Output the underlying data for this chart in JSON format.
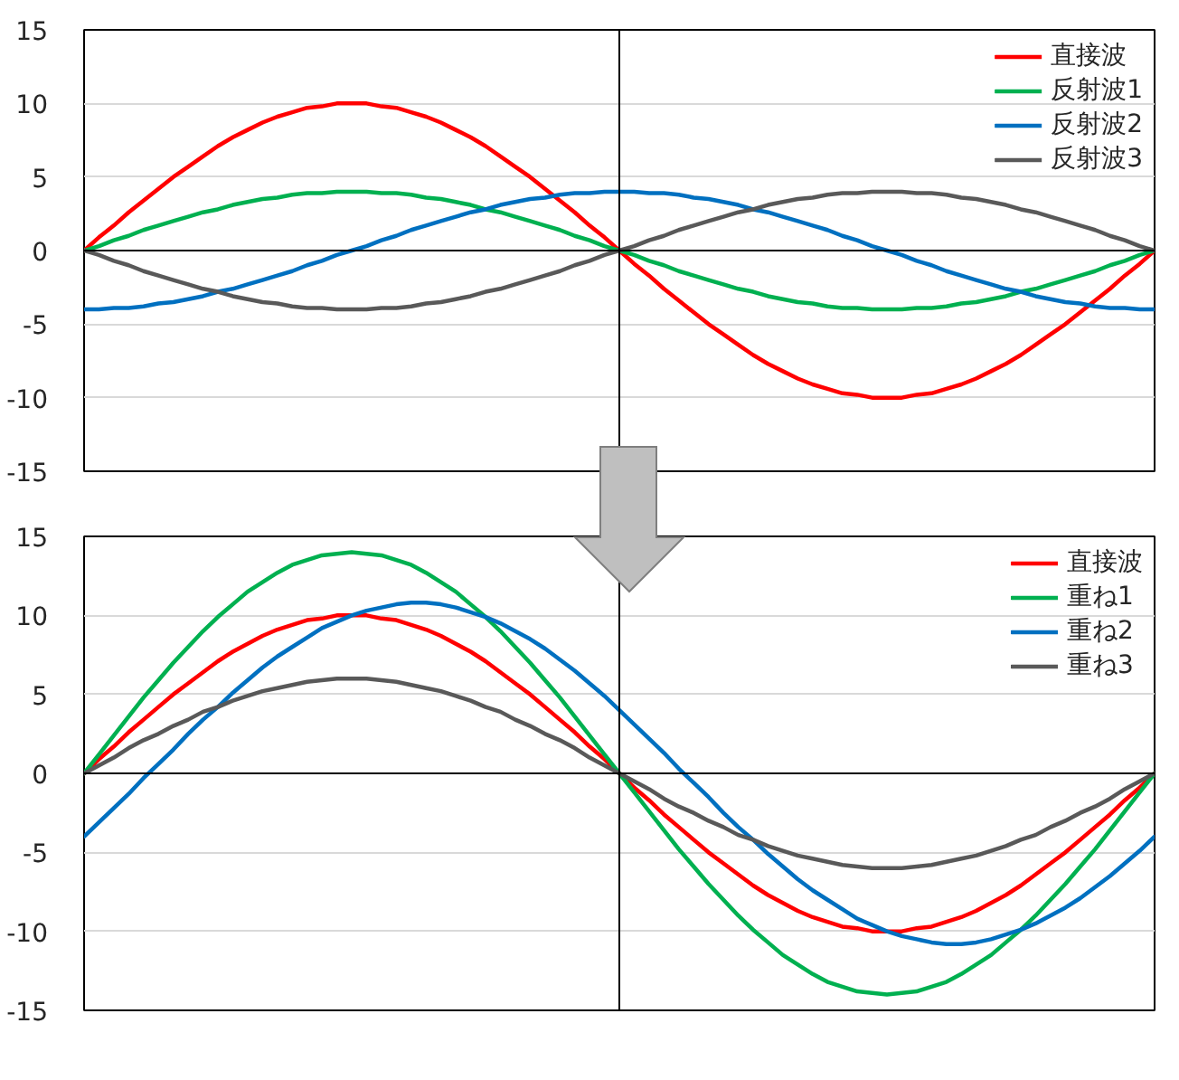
{
  "chart_data": [
    {
      "type": "line",
      "categories": [
        null,
        null,
        null,
        null,
        null,
        null,
        null,
        null,
        null,
        null,
        null,
        null,
        null,
        null,
        null,
        null,
        null,
        null,
        null,
        null,
        null,
        null,
        null,
        null,
        null,
        null,
        null,
        null,
        null,
        null,
        null,
        null,
        null,
        null,
        null,
        null,
        null,
        null,
        null,
        null,
        null,
        null,
        null,
        null,
        null,
        null,
        null,
        null,
        null,
        null,
        null,
        null,
        null,
        null,
        null,
        null,
        null,
        null,
        null,
        null,
        null,
        null,
        null,
        null,
        null,
        null,
        null,
        null,
        null,
        null,
        null,
        null,
        null
      ],
      "series": [
        {
          "name": "直接波",
          "color": "#ff0000",
          "values": [
            0,
            0.9,
            1.7,
            2.6,
            3.4,
            4.2,
            5,
            5.7,
            6.4,
            7.1,
            7.7,
            8.2,
            8.7,
            9.1,
            9.4,
            9.7,
            9.8,
            10,
            10,
            10,
            9.8,
            9.7,
            9.4,
            9.1,
            8.7,
            8.2,
            7.7,
            7.1,
            6.4,
            5.7,
            5,
            4.2,
            3.4,
            2.6,
            1.7,
            0.9,
            0,
            -0.9,
            -1.7,
            -2.6,
            -3.4,
            -4.2,
            -5,
            -5.7,
            -6.4,
            -7.1,
            -7.7,
            -8.2,
            -8.7,
            -9.1,
            -9.4,
            -9.7,
            -9.8,
            -10,
            -10,
            -10,
            -9.8,
            -9.7,
            -9.4,
            -9.1,
            -8.7,
            -8.2,
            -7.7,
            -7.1,
            -6.4,
            -5.7,
            -5,
            -4.2,
            -3.4,
            -2.6,
            -1.7,
            -0.9,
            0
          ]
        },
        {
          "name": "反射波1",
          "color": "#00b050",
          "values": [
            0,
            0.3,
            0.7,
            1,
            1.4,
            1.7,
            2,
            2.3,
            2.6,
            2.8,
            3.1,
            3.3,
            3.5,
            3.6,
            3.8,
            3.9,
            3.9,
            4,
            4,
            4,
            3.9,
            3.9,
            3.8,
            3.6,
            3.5,
            3.3,
            3.1,
            2.8,
            2.6,
            2.3,
            2,
            1.7,
            1.4,
            1,
            0.7,
            0.3,
            0,
            -0.3,
            -0.7,
            -1,
            -1.4,
            -1.7,
            -2,
            -2.3,
            -2.6,
            -2.8,
            -3.1,
            -3.3,
            -3.5,
            -3.6,
            -3.8,
            -3.9,
            -3.9,
            -4,
            -4,
            -4,
            -3.9,
            -3.9,
            -3.8,
            -3.6,
            -3.5,
            -3.3,
            -3.1,
            -2.8,
            -2.6,
            -2.3,
            -2,
            -1.7,
            -1.4,
            -1,
            -0.7,
            -0.3,
            0
          ]
        },
        {
          "name": "反射波2",
          "color": "#0070c0",
          "values": [
            -4,
            -4,
            -3.9,
            -3.9,
            -3.8,
            -3.6,
            -3.5,
            -3.3,
            -3.1,
            -2.8,
            -2.6,
            -2.3,
            -2,
            -1.7,
            -1.4,
            -1,
            -0.7,
            -0.3,
            0,
            0.3,
            0.7,
            1,
            1.4,
            1.7,
            2,
            2.3,
            2.6,
            2.8,
            3.1,
            3.3,
            3.5,
            3.6,
            3.8,
            3.9,
            3.9,
            4,
            4,
            4,
            3.9,
            3.9,
            3.8,
            3.6,
            3.5,
            3.3,
            3.1,
            2.8,
            2.6,
            2.3,
            2,
            1.7,
            1.4,
            1,
            0.7,
            0.3,
            0,
            -0.3,
            -0.7,
            -1,
            -1.4,
            -1.7,
            -2,
            -2.3,
            -2.6,
            -2.8,
            -3.1,
            -3.3,
            -3.5,
            -3.6,
            -3.8,
            -3.9,
            -3.9,
            -4,
            -4
          ]
        },
        {
          "name": "反射波3",
          "color": "#595959",
          "values": [
            0,
            -0.3,
            -0.7,
            -1,
            -1.4,
            -1.7,
            -2,
            -2.3,
            -2.6,
            -2.8,
            -3.1,
            -3.3,
            -3.5,
            -3.6,
            -3.8,
            -3.9,
            -3.9,
            -4,
            -4,
            -4,
            -3.9,
            -3.9,
            -3.8,
            -3.6,
            -3.5,
            -3.3,
            -3.1,
            -2.8,
            -2.6,
            -2.3,
            -2,
            -1.7,
            -1.4,
            -1,
            -0.7,
            -0.3,
            0,
            0.3,
            0.7,
            1,
            1.4,
            1.7,
            2,
            2.3,
            2.6,
            2.8,
            3.1,
            3.3,
            3.5,
            3.6,
            3.8,
            3.9,
            3.9,
            4,
            4,
            4,
            3.9,
            3.9,
            3.8,
            3.6,
            3.5,
            3.3,
            3.1,
            2.8,
            2.6,
            2.3,
            2,
            1.7,
            1.4,
            1,
            0.7,
            0.3,
            0
          ]
        }
      ],
      "ylim": [
        -15,
        15
      ],
      "yticks": [
        -15,
        -10,
        -5,
        0,
        5,
        10,
        15
      ],
      "grid": "y",
      "legend": "top right",
      "tick_labels": "y",
      "line_style": "solid"
    },
    {
      "type": "line",
      "categories": [
        null,
        null,
        null,
        null,
        null,
        null,
        null,
        null,
        null,
        null,
        null,
        null,
        null,
        null,
        null,
        null,
        null,
        null,
        null,
        null,
        null,
        null,
        null,
        null,
        null,
        null,
        null,
        null,
        null,
        null,
        null,
        null,
        null,
        null,
        null,
        null,
        null,
        null,
        null,
        null,
        null,
        null,
        null,
        null,
        null,
        null,
        null,
        null,
        null,
        null,
        null,
        null,
        null,
        null,
        null,
        null,
        null,
        null,
        null,
        null,
        null,
        null,
        null,
        null,
        null,
        null,
        null,
        null,
        null,
        null,
        null,
        null,
        null
      ],
      "series": [
        {
          "name": "直接波",
          "color": "#ff0000",
          "values": [
            0,
            0.9,
            1.7,
            2.6,
            3.4,
            4.2,
            5,
            5.7,
            6.4,
            7.1,
            7.7,
            8.2,
            8.7,
            9.1,
            9.4,
            9.7,
            9.8,
            10,
            10,
            10,
            9.8,
            9.7,
            9.4,
            9.1,
            8.7,
            8.2,
            7.7,
            7.1,
            6.4,
            5.7,
            5,
            4.2,
            3.4,
            2.6,
            1.7,
            0.9,
            0,
            -0.9,
            -1.7,
            -2.6,
            -3.4,
            -4.2,
            -5,
            -5.7,
            -6.4,
            -7.1,
            -7.7,
            -8.2,
            -8.7,
            -9.1,
            -9.4,
            -9.7,
            -9.8,
            -10,
            -10,
            -10,
            -9.8,
            -9.7,
            -9.4,
            -9.1,
            -8.7,
            -8.2,
            -7.7,
            -7.1,
            -6.4,
            -5.7,
            -5,
            -4.2,
            -3.4,
            -2.6,
            -1.7,
            -0.9,
            0
          ]
        },
        {
          "name": "重ね1",
          "color": "#00b050",
          "values": [
            0,
            1.2,
            2.4,
            3.6,
            4.8,
            5.9,
            7,
            8,
            9,
            9.9,
            10.7,
            11.5,
            12.1,
            12.7,
            13.2,
            13.5,
            13.8,
            13.9,
            14,
            13.9,
            13.8,
            13.5,
            13.2,
            12.7,
            12.1,
            11.5,
            10.7,
            9.9,
            9,
            8,
            7,
            5.9,
            4.8,
            3.6,
            2.4,
            1.2,
            0,
            -1.2,
            -2.4,
            -3.6,
            -4.8,
            -5.9,
            -7,
            -8,
            -9,
            -9.9,
            -10.7,
            -11.5,
            -12.1,
            -12.7,
            -13.2,
            -13.5,
            -13.8,
            -13.9,
            -14,
            -13.9,
            -13.8,
            -13.5,
            -13.2,
            -12.7,
            -12.1,
            -11.5,
            -10.7,
            -9.9,
            -9,
            -8,
            -7,
            -5.9,
            -4.8,
            -3.6,
            -2.4,
            -1.2,
            0
          ]
        },
        {
          "name": "重ね2",
          "color": "#0070c0",
          "values": [
            -4,
            -3.1,
            -2.2,
            -1.3,
            -0.3,
            0.6,
            1.5,
            2.5,
            3.4,
            4.2,
            5.1,
            5.9,
            6.7,
            7.4,
            8,
            8.6,
            9.2,
            9.6,
            10,
            10.3,
            10.5,
            10.7,
            10.8,
            10.8,
            10.7,
            10.5,
            10.2,
            9.9,
            9.5,
            9,
            8.5,
            7.9,
            7.2,
            6.5,
            5.7,
            4.9,
            4,
            3.1,
            2.2,
            1.3,
            0.3,
            -0.6,
            -1.5,
            -2.5,
            -3.4,
            -4.2,
            -5.1,
            -5.9,
            -6.7,
            -7.4,
            -8,
            -8.6,
            -9.2,
            -9.6,
            -10,
            -10.3,
            -10.5,
            -10.7,
            -10.8,
            -10.8,
            -10.7,
            -10.5,
            -10.2,
            -9.9,
            -9.5,
            -9,
            -8.5,
            -7.9,
            -7.2,
            -6.5,
            -5.7,
            -4.9,
            -4
          ]
        },
        {
          "name": "重ね3",
          "color": "#595959",
          "values": [
            0,
            0.5,
            1,
            1.6,
            2.1,
            2.5,
            3,
            3.4,
            3.9,
            4.2,
            4.6,
            4.9,
            5.2,
            5.4,
            5.6,
            5.8,
            5.9,
            6,
            6,
            6,
            5.9,
            5.8,
            5.6,
            5.4,
            5.2,
            4.9,
            4.6,
            4.2,
            3.9,
            3.4,
            3,
            2.5,
            2.1,
            1.6,
            1,
            0.5,
            0,
            -0.5,
            -1,
            -1.6,
            -2.1,
            -2.5,
            -3,
            -3.4,
            -3.9,
            -4.2,
            -4.6,
            -4.9,
            -5.2,
            -5.4,
            -5.6,
            -5.8,
            -5.9,
            -6,
            -6,
            -6,
            -5.9,
            -5.8,
            -5.6,
            -5.4,
            -5.2,
            -4.9,
            -4.6,
            -4.2,
            -3.9,
            -3.4,
            -3,
            -2.5,
            -2.1,
            -1.6,
            -1,
            -0.5,
            0
          ]
        }
      ],
      "ylim": [
        -15,
        15
      ],
      "yticks": [
        -15,
        -10,
        -5,
        0,
        5,
        10,
        15
      ],
      "grid": "y",
      "legend": "top right",
      "tick_labels": "y",
      "line_style": "solid"
    }
  ]
}
